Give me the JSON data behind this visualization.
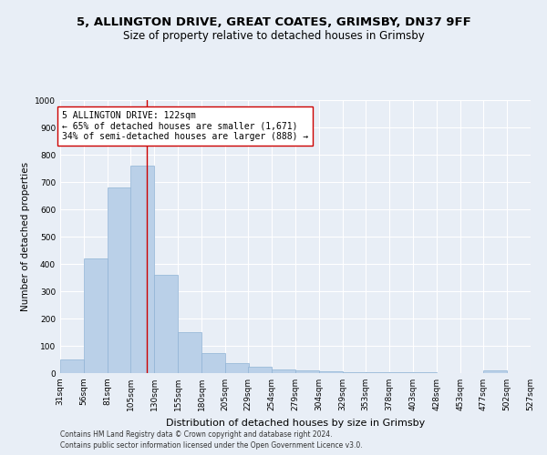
{
  "title1": "5, ALLINGTON DRIVE, GREAT COATES, GRIMSBY, DN37 9FF",
  "title2": "Size of property relative to detached houses in Grimsby",
  "xlabel": "Distribution of detached houses by size in Grimsby",
  "ylabel": "Number of detached properties",
  "footnote1": "Contains HM Land Registry data © Crown copyright and database right 2024.",
  "footnote2": "Contains public sector information licensed under the Open Government Licence v3.0.",
  "bar_left_edges": [
    31,
    56,
    81,
    105,
    130,
    155,
    180,
    205,
    229,
    254,
    279,
    304,
    329,
    353,
    378,
    403,
    428,
    453,
    477,
    502
  ],
  "bar_widths": [
    25,
    25,
    25,
    25,
    25,
    25,
    25,
    25,
    25,
    25,
    25,
    25,
    25,
    25,
    25,
    25,
    25,
    25,
    25,
    25
  ],
  "bar_heights": [
    50,
    420,
    680,
    760,
    360,
    150,
    72,
    37,
    25,
    15,
    10,
    7,
    5,
    4,
    3,
    2,
    0,
    0,
    10,
    0
  ],
  "bar_color": "#bad0e8",
  "bar_edgecolor": "#8fb3d5",
  "property_size": 122,
  "vline_color": "#cc0000",
  "annotation_text": "5 ALLINGTON DRIVE: 122sqm\n← 65% of detached houses are smaller (1,671)\n34% of semi-detached houses are larger (888) →",
  "annotation_box_facecolor": "#ffffff",
  "annotation_box_edgecolor": "#cc0000",
  "xlim": [
    31,
    527
  ],
  "ylim": [
    0,
    1000
  ],
  "yticks": [
    0,
    100,
    200,
    300,
    400,
    500,
    600,
    700,
    800,
    900,
    1000
  ],
  "xtick_labels": [
    "31sqm",
    "56sqm",
    "81sqm",
    "105sqm",
    "130sqm",
    "155sqm",
    "180sqm",
    "205sqm",
    "229sqm",
    "254sqm",
    "279sqm",
    "304sqm",
    "329sqm",
    "353sqm",
    "378sqm",
    "403sqm",
    "428sqm",
    "453sqm",
    "477sqm",
    "502sqm",
    "527sqm"
  ],
  "xtick_positions": [
    31,
    56,
    81,
    105,
    130,
    155,
    180,
    205,
    229,
    254,
    279,
    304,
    329,
    353,
    378,
    403,
    428,
    453,
    477,
    502,
    527
  ],
  "bg_color": "#e8eef6",
  "grid_color": "#ffffff",
  "title1_fontsize": 9.5,
  "title2_fontsize": 8.5,
  "ylabel_fontsize": 7.5,
  "xlabel_fontsize": 8,
  "annotation_fontsize": 7,
  "tick_fontsize": 6.5,
  "footnote_fontsize": 5.5
}
